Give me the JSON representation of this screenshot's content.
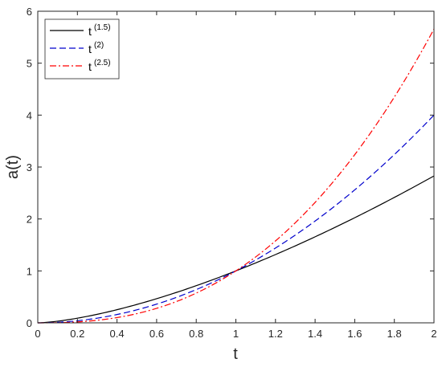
{
  "chart_data": {
    "type": "line",
    "xlabel": "t",
    "ylabel": "a(t)",
    "xlim": [
      0,
      2
    ],
    "ylim": [
      0,
      6
    ],
    "xticks": [
      "0",
      "0.2",
      "0.4",
      "0.6",
      "0.8",
      "1",
      "1.2",
      "1.4",
      "1.6",
      "1.8",
      "2"
    ],
    "yticks": [
      "0",
      "1",
      "2",
      "3",
      "4",
      "5",
      "6"
    ],
    "grid": false,
    "legend_position": "top-left",
    "series": [
      {
        "name": "t",
        "exponent_label": "(1.5)",
        "exponent": 1.5,
        "color": "#000000",
        "style": "solid",
        "x": [
          0,
          0.2,
          0.4,
          0.6,
          0.8,
          1.0,
          1.2,
          1.4,
          1.6,
          1.8,
          2.0
        ],
        "y": [
          0,
          0.089,
          0.253,
          0.465,
          0.716,
          1.0,
          1.315,
          1.657,
          2.024,
          2.415,
          2.828
        ]
      },
      {
        "name": "t",
        "exponent_label": "(2)",
        "exponent": 2,
        "color": "#0000cc",
        "style": "dashed",
        "x": [
          0,
          0.2,
          0.4,
          0.6,
          0.8,
          1.0,
          1.2,
          1.4,
          1.6,
          1.8,
          2.0
        ],
        "y": [
          0,
          0.04,
          0.16,
          0.36,
          0.64,
          1.0,
          1.44,
          1.96,
          2.56,
          3.24,
          4.0
        ]
      },
      {
        "name": "t",
        "exponent_label": "(2.5)",
        "exponent": 2.5,
        "color": "#ff0000",
        "style": "dashdot",
        "x": [
          0,
          0.2,
          0.4,
          0.6,
          0.8,
          1.0,
          1.2,
          1.4,
          1.6,
          1.8,
          2.0
        ],
        "y": [
          0,
          0.018,
          0.101,
          0.279,
          0.572,
          1.0,
          1.577,
          2.319,
          3.238,
          4.347,
          5.657
        ]
      }
    ]
  }
}
